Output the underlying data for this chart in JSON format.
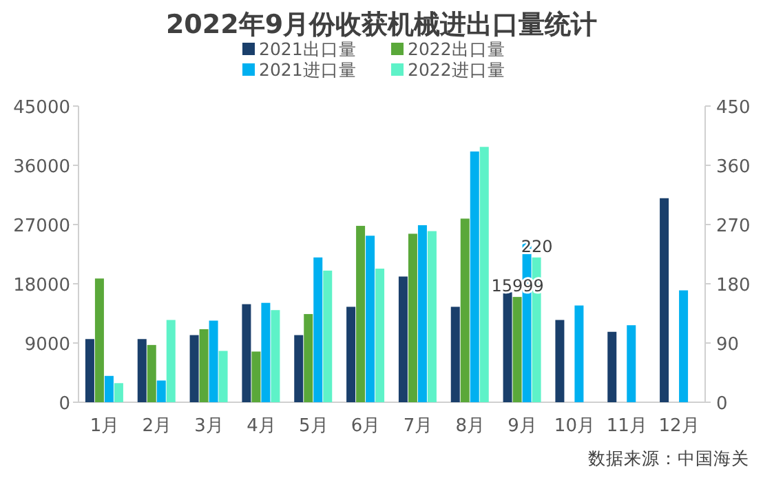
{
  "chart_data": {
    "type": "bar",
    "title": "2022年9月份收获机械进出口量统计",
    "categories": [
      "1月",
      "2月",
      "3月",
      "4月",
      "5月",
      "6月",
      "7月",
      "8月",
      "9月",
      "10月",
      "11月",
      "12月"
    ],
    "series": [
      {
        "name": "2021出口量",
        "color": "#1a3f6b",
        "values": [
          9600,
          9600,
          10200,
          14900,
          10200,
          14500,
          19100,
          14500,
          16700,
          12500,
          10700,
          31000
        ]
      },
      {
        "name": "2022出口量",
        "color": "#5aa83a",
        "values": [
          18800,
          8700,
          11100,
          7700,
          13400,
          26800,
          25600,
          27900,
          15999,
          null,
          null,
          null
        ],
        "value_labels": [
          null,
          null,
          null,
          null,
          null,
          null,
          null,
          null,
          "15999",
          null,
          null,
          null
        ]
      },
      {
        "name": "2021进口量",
        "color": "#00b0f0",
        "axis": "y2",
        "values": [
          40,
          33,
          124,
          151,
          220,
          253,
          269,
          381,
          245,
          147,
          117,
          170
        ]
      },
      {
        "name": "2022进口量",
        "color": "#5ef2c8",
        "axis": "y2",
        "values": [
          29,
          125,
          78,
          140,
          200,
          203,
          260,
          388,
          220,
          null,
          null,
          null
        ],
        "value_labels": [
          null,
          null,
          null,
          null,
          null,
          null,
          null,
          null,
          "220",
          null,
          null,
          null
        ]
      }
    ],
    "ylim": [
      0,
      45000
    ],
    "yticks": [
      0,
      9000,
      18000,
      27000,
      36000,
      45000
    ],
    "y2lim": [
      0,
      450
    ],
    "y2ticks": [
      0,
      90,
      180,
      270,
      360,
      450
    ],
    "legend": "top",
    "annotations": [
      "数据来源：中国海关"
    ]
  }
}
